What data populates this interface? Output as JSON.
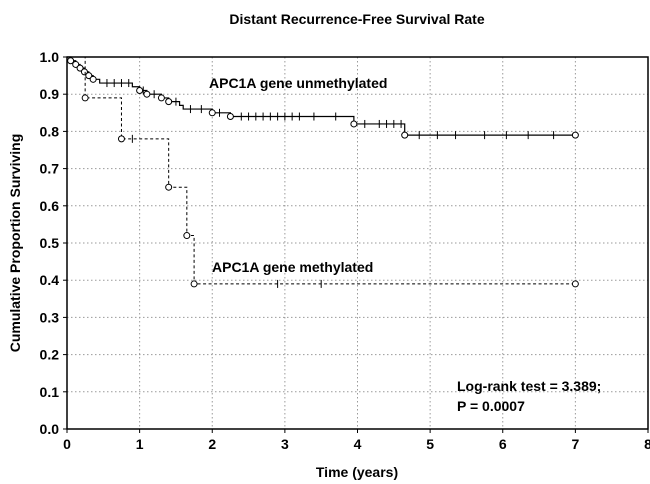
{
  "chart_data": {
    "type": "line",
    "title": "Distant Recurrence-Free Survival Rate",
    "xlabel": "Time (years)",
    "ylabel": "Cumulative Proportion Surviving",
    "xlim": [
      0,
      8
    ],
    "ylim": [
      0,
      1.0
    ],
    "x_ticks": [
      "0",
      "1",
      "2",
      "3",
      "4",
      "5",
      "6",
      "7",
      "8"
    ],
    "y_ticks": [
      "0.0",
      "0.1",
      "0.2",
      "0.3",
      "0.4",
      "0.5",
      "0.6",
      "0.7",
      "0.8",
      "0.9",
      "1.0"
    ],
    "grid": "dotted",
    "annotations": [
      "APC1A gene unmethylated",
      "APC1A gene methylated",
      "Log-rank test = 3.389;",
      "P = 0.0007"
    ],
    "series": [
      {
        "label_ref": 0,
        "line_style": "solid",
        "steps": [
          [
            0,
            1.0
          ],
          [
            0.05,
            0.99
          ],
          [
            0.12,
            0.98
          ],
          [
            0.18,
            0.97
          ],
          [
            0.24,
            0.96
          ],
          [
            0.3,
            0.95
          ],
          [
            0.36,
            0.94
          ],
          [
            0.45,
            0.93
          ],
          [
            0.9,
            0.92
          ],
          [
            1.0,
            0.91
          ],
          [
            1.1,
            0.9
          ],
          [
            1.3,
            0.89
          ],
          [
            1.4,
            0.88
          ],
          [
            1.55,
            0.87
          ],
          [
            1.6,
            0.86
          ],
          [
            2.0,
            0.85
          ],
          [
            2.25,
            0.84
          ],
          [
            3.95,
            0.82
          ],
          [
            4.65,
            0.79
          ],
          [
            7.0,
            0.79
          ]
        ],
        "events": [
          0.05,
          0.12,
          0.18,
          0.24,
          0.3,
          0.36,
          1.0,
          1.1,
          1.3,
          1.4,
          2.0,
          2.25,
          3.95,
          4.65
        ],
        "censored": [
          [
            0.55,
            0.93
          ],
          [
            0.65,
            0.93
          ],
          [
            0.75,
            0.93
          ],
          [
            0.85,
            0.93
          ],
          [
            1.05,
            0.91
          ],
          [
            1.2,
            0.9
          ],
          [
            1.5,
            0.88
          ],
          [
            1.7,
            0.86
          ],
          [
            1.85,
            0.86
          ],
          [
            2.1,
            0.85
          ],
          [
            2.4,
            0.84
          ],
          [
            2.5,
            0.84
          ],
          [
            2.6,
            0.84
          ],
          [
            2.7,
            0.84
          ],
          [
            2.8,
            0.84
          ],
          [
            2.9,
            0.84
          ],
          [
            3.0,
            0.84
          ],
          [
            3.1,
            0.84
          ],
          [
            3.2,
            0.84
          ],
          [
            3.4,
            0.84
          ],
          [
            3.7,
            0.84
          ],
          [
            4.1,
            0.82
          ],
          [
            4.3,
            0.82
          ],
          [
            4.4,
            0.82
          ],
          [
            4.5,
            0.82
          ],
          [
            4.6,
            0.82
          ],
          [
            4.85,
            0.79
          ],
          [
            5.1,
            0.79
          ],
          [
            5.35,
            0.79
          ],
          [
            5.75,
            0.79
          ],
          [
            6.05,
            0.79
          ],
          [
            6.35,
            0.79
          ],
          [
            6.7,
            0.79
          ]
        ],
        "end_marker": [
          7.0,
          0.79
        ]
      },
      {
        "label_ref": 1,
        "line_style": "dashed",
        "steps": [
          [
            0,
            1.0
          ],
          [
            0.25,
            0.89
          ],
          [
            0.75,
            0.78
          ],
          [
            1.4,
            0.65
          ],
          [
            1.65,
            0.52
          ],
          [
            1.75,
            0.39
          ],
          [
            7.0,
            0.39
          ]
        ],
        "events": [
          0.25,
          0.75,
          1.4,
          1.65,
          1.75
        ],
        "censored": [
          [
            0.9,
            0.78
          ],
          [
            2.9,
            0.39
          ],
          [
            3.5,
            0.39
          ]
        ],
        "end_marker": [
          7.0,
          0.39
        ]
      }
    ]
  }
}
